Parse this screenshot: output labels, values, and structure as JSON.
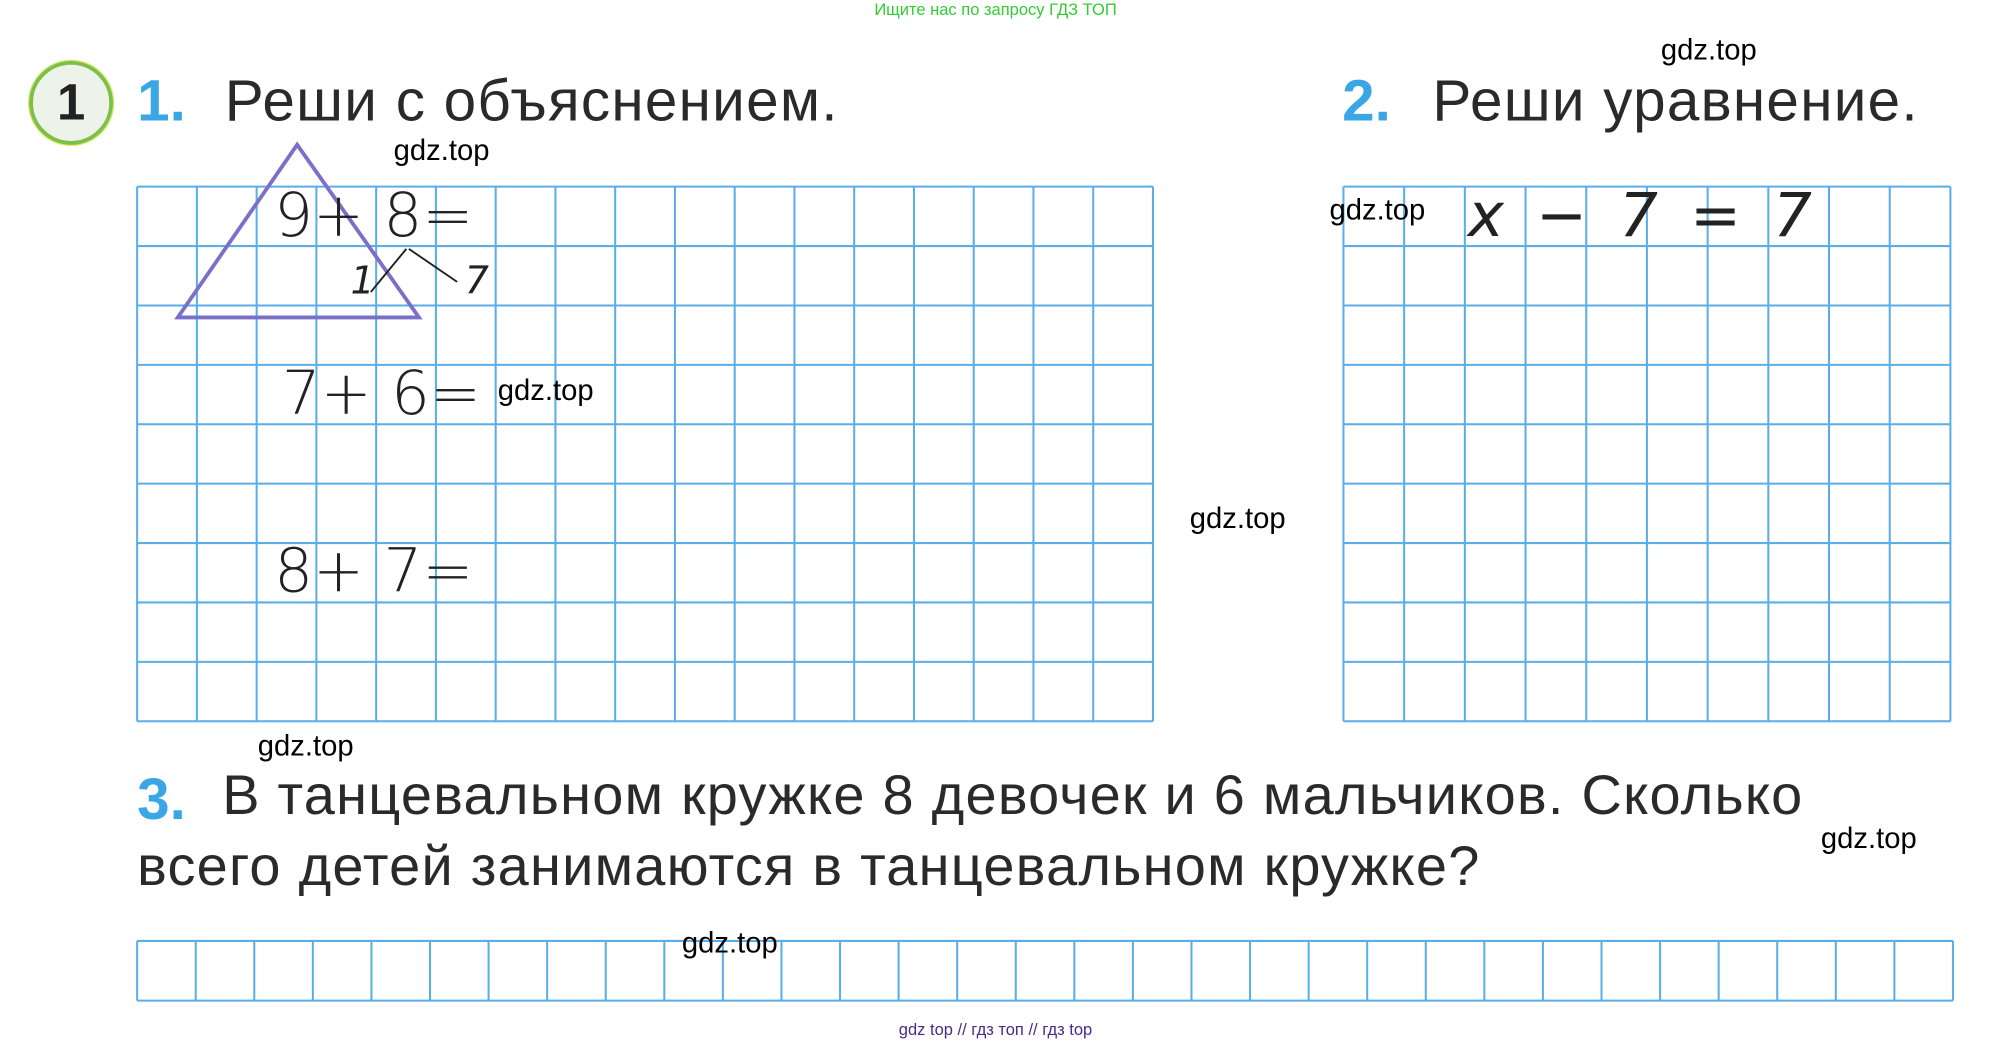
{
  "top_note": "Ищите нас по запросу ГДЗ ТОП",
  "badge": "1",
  "task1": {
    "number": "1.",
    "title": "Реши с объяснением.",
    "expressions": [
      "9+ 8=",
      "7+ 6=",
      "8+ 7="
    ],
    "decomposition": [
      "1",
      "7"
    ]
  },
  "task2": {
    "number": "2.",
    "title": "Реши уравнение.",
    "equation": "x − 7 = 7"
  },
  "task3": {
    "number": "3.",
    "line1": "В танцевальном кружке 8 девочек и 6 мальчиков. Сколько",
    "line2": "всего детей занимаются в танцевальном кружке?"
  },
  "watermark": "gdz.top",
  "footer": "gdz top  //  гдз топ  //  гдз top",
  "colors": {
    "grid": "#5aaee8",
    "accent": "#3aa6e6",
    "triangle": "#7b6fc8",
    "top_note": "#33cc33"
  }
}
